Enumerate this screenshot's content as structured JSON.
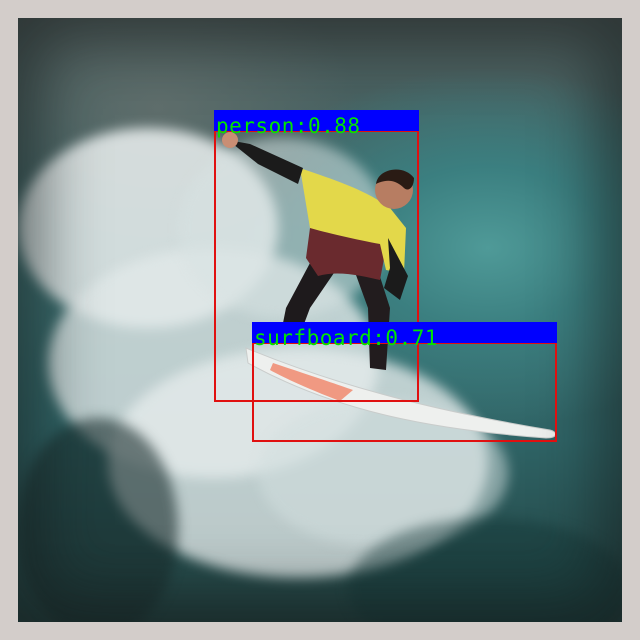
{
  "detections": [
    {
      "label": "person:0.88",
      "class": "person",
      "score": 0.88,
      "box_color": "#e01010",
      "label_bg": "#0000ff",
      "label_color": "#00e600"
    },
    {
      "label": "surfboard:0.71",
      "class": "surfboard",
      "score": 0.71,
      "box_color": "#e01010",
      "label_bg": "#0000ff",
      "label_color": "#00e600"
    }
  ],
  "scene": {
    "water_color": "#3b7f80",
    "foam_color": "#e8ecec",
    "frame_color": "#d3cdca"
  }
}
